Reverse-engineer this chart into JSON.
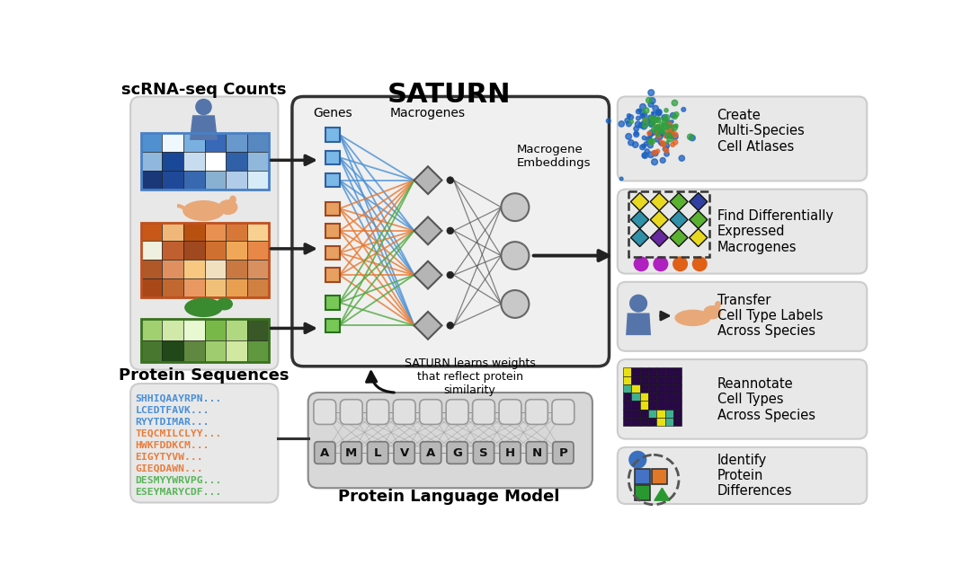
{
  "title": "SATURN",
  "bg_color": "#ffffff",
  "scrna_label": "scRNA-seq Counts",
  "protein_label": "Protein Sequences",
  "genes_label": "Genes",
  "macrogenes_label": "Macrogenes",
  "macrogene_embed_label": "Macrogene\nEmbeddings",
  "plm_label": "Protein Language Model",
  "saturn_learns_text": "SATURN learns weights\nthat reflect protein\nsimilarity",
  "output_labels": [
    "Create\nMulti-Species\nCell Atlases",
    "Find Differentially\nExpressed\nMacrogenes",
    "Transfer\nCell Type Labels\nAcross Species",
    "Reannotate\nCell Types\nAcross Species",
    "Identify\nProtein\nDifferences"
  ],
  "protein_sequences": [
    {
      "text": "SHHIQAAYRPN...",
      "color": "#4a90d9"
    },
    {
      "text": "LCEDTFAVK...",
      "color": "#4a90d9"
    },
    {
      "text": "RYYTDIMAR...",
      "color": "#4a90d9"
    },
    {
      "text": "TEQCMILCLYY...",
      "color": "#e87e3e"
    },
    {
      "text": "HWKFDDKCM...",
      "color": "#e87e3e"
    },
    {
      "text": "EIGYTYVW...",
      "color": "#e87e3e"
    },
    {
      "text": "GIEQDAWN...",
      "color": "#e87e3e"
    },
    {
      "text": "DESMYYWRVPG...",
      "color": "#5ab55a"
    },
    {
      "text": "ESEYMARYCDF...",
      "color": "#5ab55a"
    }
  ],
  "plm_letters": [
    "A",
    "M",
    "L",
    "V",
    "A",
    "G",
    "S",
    "H",
    "N",
    "P"
  ],
  "blue_heatmap": [
    "#5090d0",
    "#f0f8ff",
    "#7ab0e0",
    "#3868b8",
    "#6898cc",
    "#5888c0",
    "#90b8dc",
    "#1a4898",
    "#c8dcf0",
    "#ffffff",
    "#3060a8",
    "#90b8dc",
    "#1a3878",
    "#204898",
    "#3868b0",
    "#88b0d0",
    "#b0cce8",
    "#d8ecf8"
  ],
  "orange_heatmap": [
    "#c85818",
    "#f0b878",
    "#b85010",
    "#e89050",
    "#d87838",
    "#f8d090",
    "#f0f0e0",
    "#c06030",
    "#a04820",
    "#d07030",
    "#f0a858",
    "#e88848",
    "#b05828",
    "#e09060",
    "#f8c880",
    "#f0e0c0",
    "#c87840",
    "#d89060",
    "#a84818",
    "#c06830",
    "#e89860",
    "#f0c078",
    "#e8a050",
    "#d08040"
  ],
  "green_heatmap": [
    "#a0d070",
    "#d0e8a8",
    "#e8f8d0",
    "#78b848",
    "#b0d880",
    "#385828",
    "#487830",
    "#204818",
    "#608840",
    "#a0cc70",
    "#d0e8a0",
    "#609840"
  ],
  "panel_bg": "#e8e8e8",
  "saturn_bg": "#f0f0f0",
  "saturn_border": "#333333",
  "panel_border": "#cccccc",
  "reannotate_colors": [
    "#e8e010",
    "#280845",
    "#280845",
    "#280845",
    "#280845",
    "#280845",
    "#280845",
    "#e8e010",
    "#280845",
    "#280845",
    "#280845",
    "#280845",
    "#280845",
    "#280845",
    "#50c0a0",
    "#e8e010",
    "#280845",
    "#280845",
    "#280845",
    "#280845",
    "#280845",
    "#280845",
    "#50c0a0",
    "#e8e010",
    "#280845",
    "#280845",
    "#280845",
    "#280845",
    "#280845",
    "#280845",
    "#e8e010",
    "#280845",
    "#280845",
    "#280845",
    "#280845",
    "#280845",
    "#280845",
    "#280845",
    "#50c0a0",
    "#e8e010",
    "#50c0a0",
    "#280845",
    "#280845",
    "#280845",
    "#280845",
    "#280845",
    "#e8e010",
    "#50c0a0",
    "#280845"
  ]
}
